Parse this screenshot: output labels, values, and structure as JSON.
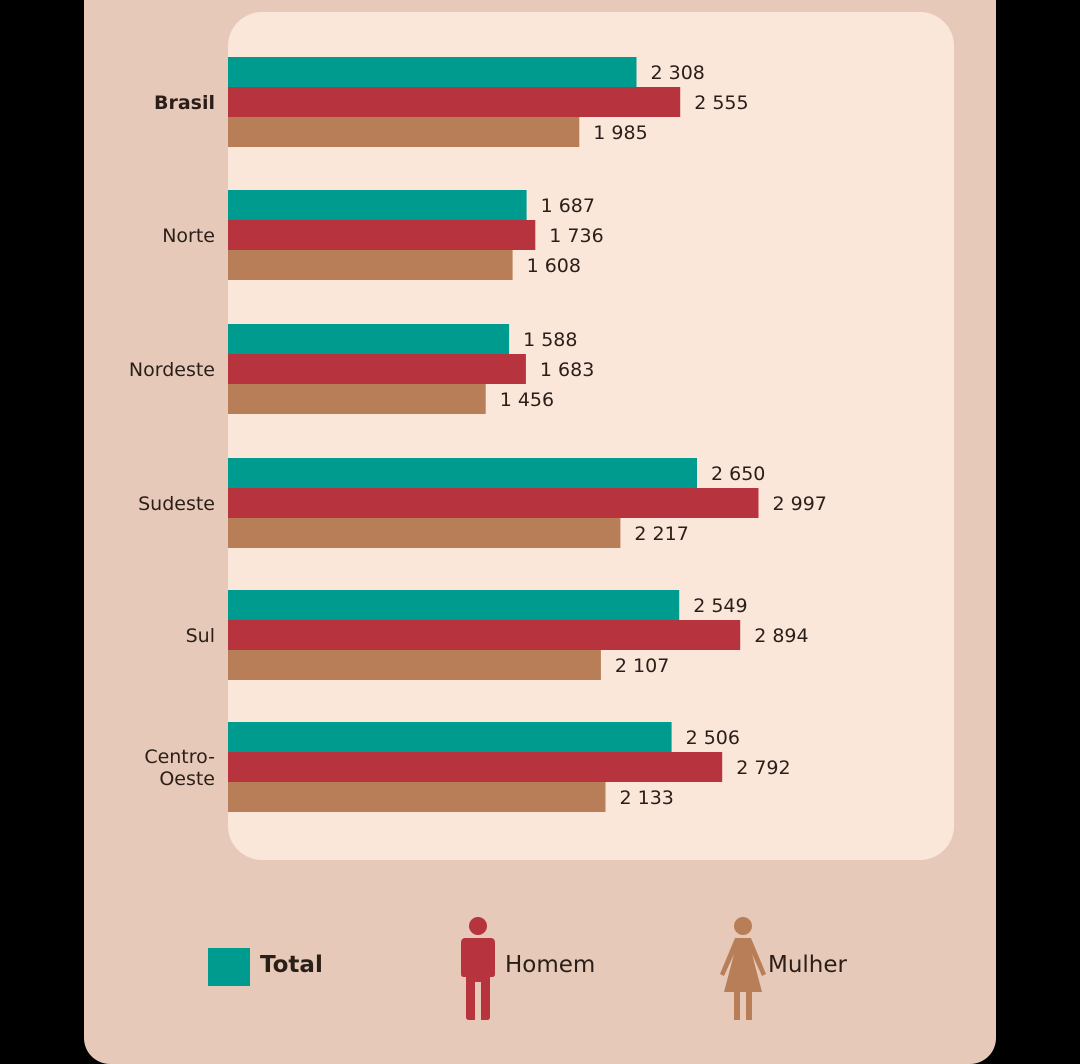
{
  "chart_data": {
    "type": "bar",
    "orientation": "horizontal",
    "categories": [
      "Brasil",
      "Norte",
      "Nordeste",
      "Sudeste",
      "Sul",
      "Centro-\nOeste"
    ],
    "bold_categories": [
      "Brasil"
    ],
    "series": [
      {
        "name": "Total",
        "color": "#009b8f",
        "values": [
          2308,
          1687,
          1588,
          2650,
          2549,
          2506
        ],
        "labels": [
          "2 308",
          "1 687",
          "1 588",
          "2 650",
          "2 549",
          "2 506"
        ]
      },
      {
        "name": "Homem",
        "color": "#b7343f",
        "values": [
          2555,
          1736,
          1683,
          2997,
          2894,
          2792
        ],
        "labels": [
          "2 555",
          "1 736",
          "1 683",
          "2 997",
          "2 894",
          "2 792"
        ]
      },
      {
        "name": "Mulher",
        "color": "#b87e57",
        "values": [
          1985,
          1608,
          1456,
          2217,
          2107,
          2133
        ],
        "labels": [
          "1 985",
          "1 608",
          "1 456",
          "2 217",
          "2 107",
          "2 133"
        ]
      }
    ],
    "xlim": [
      0,
      4100
    ],
    "grid": false,
    "legend_placement": "bottom"
  },
  "legend": {
    "total_label": "Total",
    "homem_label": "Homem",
    "mulher_label": "Mulher",
    "homem_icon": "man-icon",
    "mulher_icon": "woman-icon"
  }
}
